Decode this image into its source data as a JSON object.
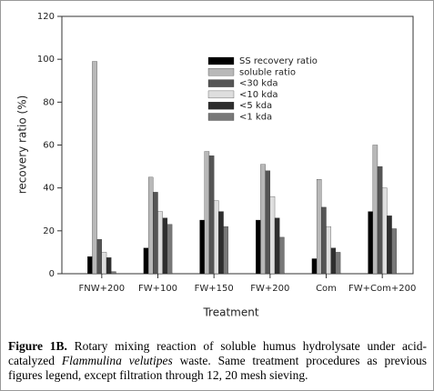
{
  "chart_data": {
    "type": "bar",
    "xlabel": "Treatment",
    "ylabel": "recovery ratio (%)",
    "categories": [
      "FNW+200",
      "FW+100",
      "FW+150",
      "FW+200",
      "Com",
      "FW+Com+200"
    ],
    "series": [
      {
        "name": "SS recovery ratio",
        "color": "#000000",
        "values": [
          8,
          12,
          25,
          25,
          7,
          29
        ]
      },
      {
        "name": "soluble ratio",
        "color": "#b8b8b8",
        "values": [
          99,
          45,
          57,
          51,
          44,
          60
        ]
      },
      {
        "name": "<30 kda",
        "color": "#555555",
        "values": [
          16,
          38,
          55,
          48,
          31,
          50
        ]
      },
      {
        "name": "<10 kda",
        "color": "#dedede",
        "values": [
          10,
          29,
          34,
          36,
          22,
          40
        ]
      },
      {
        "name": "<5 kda",
        "color": "#2e2e2e",
        "values": [
          7.5,
          26,
          29,
          26,
          12,
          27
        ]
      },
      {
        "name": "<1 kda",
        "color": "#787878",
        "values": [
          1,
          23,
          22,
          17,
          10,
          21
        ]
      }
    ],
    "ylim": [
      0,
      120
    ],
    "yticks": [
      0,
      20,
      40,
      60,
      80,
      100,
      120
    ],
    "legend": "upper-center"
  },
  "caption": {
    "label": "Figure 1B.",
    "text_before": "Rotary mixing reaction of soluble humus hydrolysate under acid-catalyzed",
    "species": "Flammulina velutipes",
    "text_after": "waste. Same treatment procedures as previous figures legend, except filtration through 12, 20 mesh sieving."
  }
}
